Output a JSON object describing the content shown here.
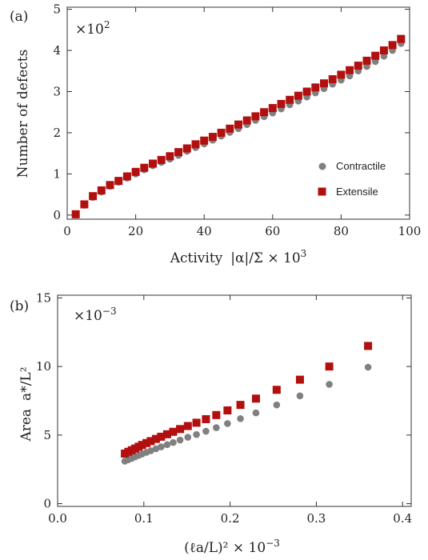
{
  "chart_data": [
    {
      "panel": "(a)",
      "type": "scatter",
      "multiplier": "×10",
      "multiplier_exp": "2",
      "xlabel": "Activity",
      "xlabel_math": "|α|/Σ × 10",
      "xlabel_exp": "3",
      "ylabel": "Number of defects",
      "xlim": [
        0,
        100
      ],
      "ylim": [
        -0.1,
        5.05
      ],
      "xticks": [
        0,
        20,
        40,
        60,
        80,
        100
      ],
      "yticks": [
        0,
        1,
        2,
        3,
        4,
        5
      ],
      "legend": [
        "Contractile",
        "Extensile"
      ],
      "legend_position": "lower-right",
      "series": [
        {
          "name": "Contractile",
          "color": "#808080",
          "marker": "circle",
          "x": [
            2.5,
            5,
            7.5,
            10,
            12.5,
            15,
            17.5,
            20,
            22.5,
            25,
            27.5,
            30,
            32.5,
            35,
            37.5,
            40,
            42.5,
            45,
            47.5,
            50,
            52.5,
            55,
            57.5,
            60,
            62.5,
            65,
            67.5,
            70,
            72.5,
            75,
            77.5,
            80,
            82.5,
            85,
            87.5,
            90,
            92.5,
            95,
            97.5
          ],
          "y": [
            0.0,
            0.24,
            0.43,
            0.56,
            0.7,
            0.8,
            0.9,
            1.0,
            1.1,
            1.2,
            1.28,
            1.36,
            1.45,
            1.55,
            1.64,
            1.73,
            1.82,
            1.92,
            2.01,
            2.1,
            2.2,
            2.3,
            2.39,
            2.48,
            2.58,
            2.68,
            2.77,
            2.87,
            2.97,
            3.07,
            3.18,
            3.28,
            3.38,
            3.5,
            3.61,
            3.73,
            3.86,
            4.0,
            4.17
          ]
        },
        {
          "name": "Extensile",
          "color": "#b20f0f",
          "marker": "square",
          "x": [
            2.5,
            5,
            7.5,
            10,
            12.5,
            15,
            17.5,
            20,
            22.5,
            25,
            27.5,
            30,
            32.5,
            35,
            37.5,
            40,
            42.5,
            45,
            47.5,
            50,
            52.5,
            55,
            57.5,
            60,
            62.5,
            65,
            67.5,
            70,
            72.5,
            75,
            77.5,
            80,
            82.5,
            85,
            87.5,
            90,
            92.5,
            95,
            97.5
          ],
          "y": [
            0.02,
            0.26,
            0.46,
            0.6,
            0.73,
            0.83,
            0.94,
            1.05,
            1.15,
            1.25,
            1.34,
            1.43,
            1.53,
            1.62,
            1.72,
            1.81,
            1.9,
            2.0,
            2.1,
            2.2,
            2.3,
            2.4,
            2.5,
            2.6,
            2.7,
            2.8,
            2.9,
            3.0,
            3.1,
            3.2,
            3.3,
            3.41,
            3.52,
            3.63,
            3.75,
            3.87,
            4.0,
            4.13,
            4.28
          ]
        }
      ]
    },
    {
      "panel": "(b)",
      "type": "scatter",
      "multiplier": "×10",
      "multiplier_exp": "−3",
      "xlabel_math": "(ℓa/L)² × 10",
      "xlabel_exp": "−3",
      "ylabel": "Area",
      "ylabel_math": "a*/L²",
      "xlim": [
        0,
        0.41
      ],
      "ylim": [
        -0.2,
        15.2
      ],
      "xticks": [
        0.0,
        0.1,
        0.2,
        0.3,
        0.4
      ],
      "xtick_labels": [
        "0.0",
        "0.1",
        "0.2",
        "0.3",
        "0.4"
      ],
      "yticks": [
        0,
        5,
        10,
        15
      ],
      "series": [
        {
          "name": "Contractile",
          "color": "#808080",
          "marker": "circle",
          "x": [
            0.078,
            0.082,
            0.086,
            0.09,
            0.094,
            0.098,
            0.103,
            0.108,
            0.114,
            0.12,
            0.127,
            0.134,
            0.142,
            0.151,
            0.161,
            0.172,
            0.184,
            0.197,
            0.212,
            0.23,
            0.254,
            0.281,
            0.315,
            0.36
          ],
          "y": [
            3.1,
            3.2,
            3.3,
            3.42,
            3.52,
            3.62,
            3.74,
            3.86,
            4.0,
            4.14,
            4.3,
            4.46,
            4.64,
            4.84,
            5.04,
            5.28,
            5.54,
            5.84,
            6.2,
            6.62,
            7.2,
            7.86,
            8.7,
            9.95
          ]
        },
        {
          "name": "Extensile",
          "color": "#b20f0f",
          "marker": "square",
          "x": [
            0.078,
            0.082,
            0.086,
            0.09,
            0.094,
            0.098,
            0.103,
            0.108,
            0.114,
            0.12,
            0.127,
            0.134,
            0.142,
            0.151,
            0.161,
            0.172,
            0.184,
            0.197,
            0.212,
            0.23,
            0.254,
            0.281,
            0.315,
            0.36
          ],
          "y": [
            3.65,
            3.78,
            3.9,
            4.02,
            4.15,
            4.28,
            4.42,
            4.56,
            4.72,
            4.88,
            5.06,
            5.24,
            5.44,
            5.66,
            5.9,
            6.16,
            6.46,
            6.8,
            7.2,
            7.66,
            8.3,
            9.04,
            10.0,
            11.5
          ]
        }
      ]
    }
  ]
}
